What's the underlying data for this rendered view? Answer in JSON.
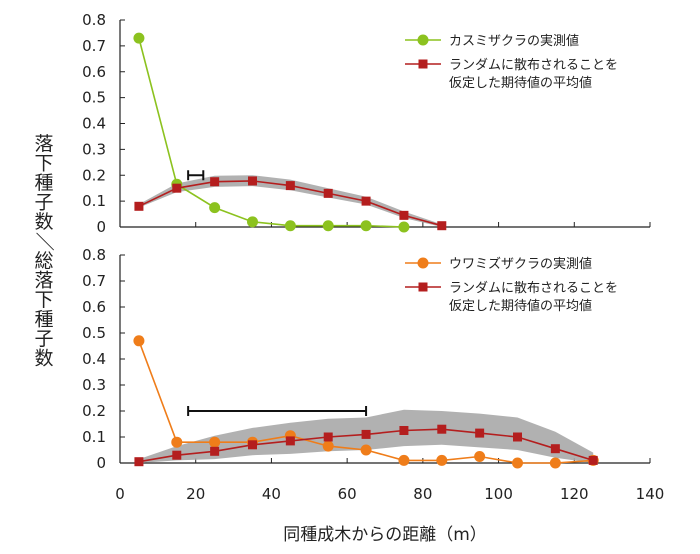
{
  "chart_data": {
    "type": "line",
    "xlabel": "同種成木からの距離（m）",
    "ylabel": "落下種子数／総落下種子数",
    "xlim": [
      0,
      140
    ],
    "xticks": [
      0,
      20,
      40,
      60,
      80,
      100,
      120,
      140
    ],
    "panels": [
      {
        "ylim": [
          0,
          0.8
        ],
        "yticks": [
          "0",
          "0.1",
          "0.2",
          "0.3",
          "0.4",
          "0.5",
          "0.6",
          "0.7",
          "0.8"
        ],
        "legend_position": "top-right",
        "series": [
          {
            "name": "カスミザクラの実測値",
            "marker": "circle",
            "color": "#8cc21f",
            "x": [
              5,
              15,
              25,
              35,
              45,
              55,
              65,
              75
            ],
            "y": [
              0.73,
              0.165,
              0.075,
              0.02,
              0.005,
              0.005,
              0.005,
              0.0
            ]
          },
          {
            "name_lines": [
              "ランダムに散布されることを",
              "仮定した期待値の平均値"
            ],
            "marker": "square",
            "color": "#b41e1e",
            "x": [
              5,
              15,
              25,
              35,
              45,
              55,
              65,
              75,
              85
            ],
            "y": [
              0.08,
              0.15,
              0.175,
              0.178,
              0.16,
              0.13,
              0.1,
              0.045,
              0.005
            ],
            "band_lower": [
              0.075,
              0.135,
              0.155,
              0.158,
              0.142,
              0.114,
              0.087,
              0.035,
              0.0
            ],
            "band_upper": [
              0.088,
              0.168,
              0.198,
              0.2,
              0.183,
              0.15,
              0.117,
              0.06,
              0.01
            ]
          }
        ],
        "interval_bar": {
          "x1": 18,
          "x2": 22,
          "y": 0.2
        }
      },
      {
        "ylim": [
          0,
          0.8
        ],
        "yticks": [
          "0",
          "0.1",
          "0.2",
          "0.3",
          "0.4",
          "0.5",
          "0.6",
          "0.7",
          "0.8"
        ],
        "legend_position": "top-right",
        "series": [
          {
            "name": "ウワミズザクラの実測値",
            "marker": "circle",
            "color": "#ef7d1a",
            "x": [
              5,
              15,
              25,
              35,
              45,
              55,
              65,
              75,
              85,
              95,
              105,
              115,
              125
            ],
            "y": [
              0.47,
              0.08,
              0.08,
              0.08,
              0.105,
              0.065,
              0.05,
              0.01,
              0.01,
              0.025,
              0.0,
              0.0,
              0.01
            ]
          },
          {
            "name_lines": [
              "ランダムに散布されることを",
              "仮定した期待値の平均値"
            ],
            "marker": "square",
            "color": "#b41e1e",
            "x": [
              5,
              15,
              25,
              35,
              45,
              55,
              65,
              75,
              85,
              95,
              105,
              115,
              125
            ],
            "y": [
              0.005,
              0.03,
              0.045,
              0.07,
              0.085,
              0.1,
              0.11,
              0.125,
              0.13,
              0.115,
              0.1,
              0.055,
              0.01
            ],
            "band_lower": [
              0.0,
              0.01,
              0.015,
              0.03,
              0.035,
              0.045,
              0.05,
              0.065,
              0.07,
              0.06,
              0.05,
              0.02,
              0.0
            ],
            "band_upper": [
              0.015,
              0.065,
              0.105,
              0.135,
              0.155,
              0.17,
              0.175,
              0.205,
              0.2,
              0.19,
              0.175,
              0.12,
              0.04
            ]
          }
        ],
        "interval_bar": {
          "x1": 18,
          "x2": 65,
          "y": 0.2
        }
      }
    ]
  }
}
